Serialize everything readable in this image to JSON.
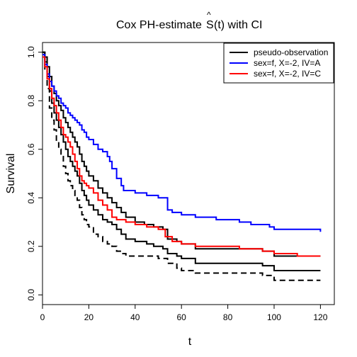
{
  "chart_data": {
    "type": "line",
    "title": {
      "prefix": "Cox PH-estimate ",
      "hat_symbol": "^",
      "symbol": "S",
      "suffix": "(t) with CI"
    },
    "xlabel": "t",
    "ylabel": "Survival",
    "xlim": [
      0,
      126
    ],
    "ylim": [
      -0.04,
      1.04
    ],
    "xticks": [
      0,
      20,
      40,
      60,
      80,
      100,
      120
    ],
    "yticks": [
      0.0,
      0.2,
      0.4,
      0.6,
      0.8,
      1.0
    ],
    "xtick_labels": [
      "0",
      "20",
      "40",
      "60",
      "80",
      "100",
      "120"
    ],
    "ytick_labels": [
      "0.0",
      "0.2",
      "0.4",
      "0.6",
      "0.8",
      "1.0"
    ],
    "grid": false,
    "legend_position": "top-right",
    "legend": [
      {
        "label": "pseudo-observation",
        "color": "#000000"
      },
      {
        "label": "sex=f, X=-2, IV=A",
        "color": "#0000ff"
      },
      {
        "label": "sex=f, X=-2, IV=C",
        "color": "#ff0000"
      }
    ],
    "series": [
      {
        "name": "pseudo-observation",
        "color": "#000000",
        "dash": "solid",
        "step": true,
        "points": [
          [
            0,
            1.0
          ],
          [
            1,
            0.96
          ],
          [
            2,
            0.9
          ],
          [
            3,
            0.84
          ],
          [
            4,
            0.79
          ],
          [
            5,
            0.75
          ],
          [
            6,
            0.72
          ],
          [
            7,
            0.69
          ],
          [
            8,
            0.66
          ],
          [
            9,
            0.63
          ],
          [
            10,
            0.6
          ],
          [
            11,
            0.57
          ],
          [
            12,
            0.55
          ],
          [
            13,
            0.53
          ],
          [
            14,
            0.51
          ],
          [
            15,
            0.49
          ],
          [
            16,
            0.46
          ],
          [
            17,
            0.43
          ],
          [
            18,
            0.41
          ],
          [
            19,
            0.39
          ],
          [
            20,
            0.37
          ],
          [
            22,
            0.35
          ],
          [
            24,
            0.33
          ],
          [
            26,
            0.31
          ],
          [
            28,
            0.3
          ],
          [
            30,
            0.29
          ],
          [
            32,
            0.27
          ],
          [
            34,
            0.25
          ],
          [
            36,
            0.23
          ],
          [
            40,
            0.22
          ],
          [
            45,
            0.21
          ],
          [
            48,
            0.2
          ],
          [
            52,
            0.19
          ],
          [
            54,
            0.17
          ],
          [
            58,
            0.16
          ],
          [
            60,
            0.15
          ],
          [
            66,
            0.13
          ],
          [
            75,
            0.13
          ],
          [
            85,
            0.13
          ],
          [
            95,
            0.12
          ],
          [
            100,
            0.1
          ],
          [
            110,
            0.1
          ],
          [
            120,
            0.1
          ]
        ]
      },
      {
        "name": "upper CI",
        "color": "#000000",
        "dash": "solid",
        "step": true,
        "points": [
          [
            0,
            1.0
          ],
          [
            1,
            0.98
          ],
          [
            2,
            0.94
          ],
          [
            3,
            0.9
          ],
          [
            4,
            0.86
          ],
          [
            5,
            0.83
          ],
          [
            6,
            0.8
          ],
          [
            7,
            0.78
          ],
          [
            8,
            0.76
          ],
          [
            9,
            0.73
          ],
          [
            10,
            0.71
          ],
          [
            11,
            0.69
          ],
          [
            12,
            0.67
          ],
          [
            13,
            0.65
          ],
          [
            14,
            0.63
          ],
          [
            15,
            0.61
          ],
          [
            16,
            0.58
          ],
          [
            17,
            0.55
          ],
          [
            18,
            0.53
          ],
          [
            19,
            0.51
          ],
          [
            20,
            0.49
          ],
          [
            22,
            0.47
          ],
          [
            24,
            0.44
          ],
          [
            26,
            0.42
          ],
          [
            28,
            0.4
          ],
          [
            30,
            0.38
          ],
          [
            32,
            0.36
          ],
          [
            34,
            0.34
          ],
          [
            36,
            0.32
          ],
          [
            40,
            0.3
          ],
          [
            44,
            0.29
          ],
          [
            48,
            0.28
          ],
          [
            52,
            0.27
          ],
          [
            54,
            0.23
          ],
          [
            58,
            0.22
          ],
          [
            60,
            0.21
          ],
          [
            66,
            0.19
          ],
          [
            75,
            0.19
          ],
          [
            85,
            0.19
          ],
          [
            95,
            0.18
          ],
          [
            100,
            0.16
          ],
          [
            110,
            0.16
          ],
          [
            120,
            0.16
          ]
        ]
      },
      {
        "name": "lower CI",
        "color": "#000000",
        "dash": "dashed",
        "step": true,
        "points": [
          [
            0,
            0.98
          ],
          [
            1,
            0.92
          ],
          [
            2,
            0.85
          ],
          [
            3,
            0.77
          ],
          [
            4,
            0.72
          ],
          [
            5,
            0.68
          ],
          [
            6,
            0.63
          ],
          [
            7,
            0.6
          ],
          [
            8,
            0.57
          ],
          [
            9,
            0.53
          ],
          [
            10,
            0.5
          ],
          [
            11,
            0.47
          ],
          [
            12,
            0.45
          ],
          [
            13,
            0.43
          ],
          [
            14,
            0.41
          ],
          [
            15,
            0.39
          ],
          [
            16,
            0.36
          ],
          [
            17,
            0.33
          ],
          [
            18,
            0.31
          ],
          [
            19,
            0.29
          ],
          [
            20,
            0.28
          ],
          [
            22,
            0.25
          ],
          [
            24,
            0.24
          ],
          [
            26,
            0.22
          ],
          [
            28,
            0.21
          ],
          [
            30,
            0.2
          ],
          [
            32,
            0.18
          ],
          [
            34,
            0.17
          ],
          [
            36,
            0.16
          ],
          [
            40,
            0.16
          ],
          [
            45,
            0.16
          ],
          [
            50,
            0.15
          ],
          [
            54,
            0.13
          ],
          [
            58,
            0.11
          ],
          [
            60,
            0.1
          ],
          [
            66,
            0.09
          ],
          [
            80,
            0.09
          ],
          [
            95,
            0.08
          ],
          [
            100,
            0.06
          ],
          [
            110,
            0.06
          ],
          [
            120,
            0.06
          ]
        ]
      },
      {
        "name": "sex=f, X=-2, IV=A",
        "color": "#0000ff",
        "dash": "solid",
        "step": true,
        "points": [
          [
            0,
            0.99
          ],
          [
            1,
            0.95
          ],
          [
            2,
            0.91
          ],
          [
            3,
            0.88
          ],
          [
            4,
            0.86
          ],
          [
            5,
            0.84
          ],
          [
            6,
            0.82
          ],
          [
            7,
            0.81
          ],
          [
            8,
            0.79
          ],
          [
            9,
            0.78
          ],
          [
            10,
            0.77
          ],
          [
            11,
            0.75
          ],
          [
            12,
            0.74
          ],
          [
            13,
            0.73
          ],
          [
            14,
            0.72
          ],
          [
            15,
            0.71
          ],
          [
            16,
            0.7
          ],
          [
            17,
            0.68
          ],
          [
            18,
            0.67
          ],
          [
            19,
            0.65
          ],
          [
            20,
            0.64
          ],
          [
            22,
            0.62
          ],
          [
            24,
            0.6
          ],
          [
            26,
            0.59
          ],
          [
            28,
            0.57
          ],
          [
            29,
            0.55
          ],
          [
            30,
            0.52
          ],
          [
            32,
            0.48
          ],
          [
            34,
            0.45
          ],
          [
            35,
            0.43
          ],
          [
            40,
            0.42
          ],
          [
            45,
            0.41
          ],
          [
            50,
            0.4
          ],
          [
            54,
            0.35
          ],
          [
            56,
            0.34
          ],
          [
            60,
            0.33
          ],
          [
            66,
            0.32
          ],
          [
            75,
            0.31
          ],
          [
            85,
            0.3
          ],
          [
            90,
            0.29
          ],
          [
            98,
            0.28
          ],
          [
            100,
            0.27
          ],
          [
            110,
            0.27
          ],
          [
            120,
            0.26
          ]
        ]
      },
      {
        "name": "sex=f, X=-2, IV=C",
        "color": "#ff0000",
        "dash": "solid",
        "step": true,
        "points": [
          [
            0,
            0.98
          ],
          [
            1,
            0.94
          ],
          [
            2,
            0.89
          ],
          [
            3,
            0.85
          ],
          [
            4,
            0.81
          ],
          [
            5,
            0.78
          ],
          [
            6,
            0.75
          ],
          [
            7,
            0.72
          ],
          [
            8,
            0.69
          ],
          [
            9,
            0.66
          ],
          [
            10,
            0.65
          ],
          [
            11,
            0.63
          ],
          [
            12,
            0.61
          ],
          [
            13,
            0.58
          ],
          [
            14,
            0.55
          ],
          [
            15,
            0.52
          ],
          [
            16,
            0.49
          ],
          [
            17,
            0.47
          ],
          [
            18,
            0.46
          ],
          [
            19,
            0.45
          ],
          [
            20,
            0.44
          ],
          [
            22,
            0.42
          ],
          [
            24,
            0.39
          ],
          [
            26,
            0.37
          ],
          [
            28,
            0.35
          ],
          [
            30,
            0.32
          ],
          [
            32,
            0.31
          ],
          [
            36,
            0.3
          ],
          [
            40,
            0.29
          ],
          [
            45,
            0.28
          ],
          [
            50,
            0.27
          ],
          [
            53,
            0.24
          ],
          [
            56,
            0.22
          ],
          [
            60,
            0.21
          ],
          [
            66,
            0.2
          ],
          [
            75,
            0.2
          ],
          [
            85,
            0.19
          ],
          [
            95,
            0.18
          ],
          [
            100,
            0.17
          ],
          [
            110,
            0.16
          ],
          [
            120,
            0.16
          ]
        ]
      }
    ]
  }
}
